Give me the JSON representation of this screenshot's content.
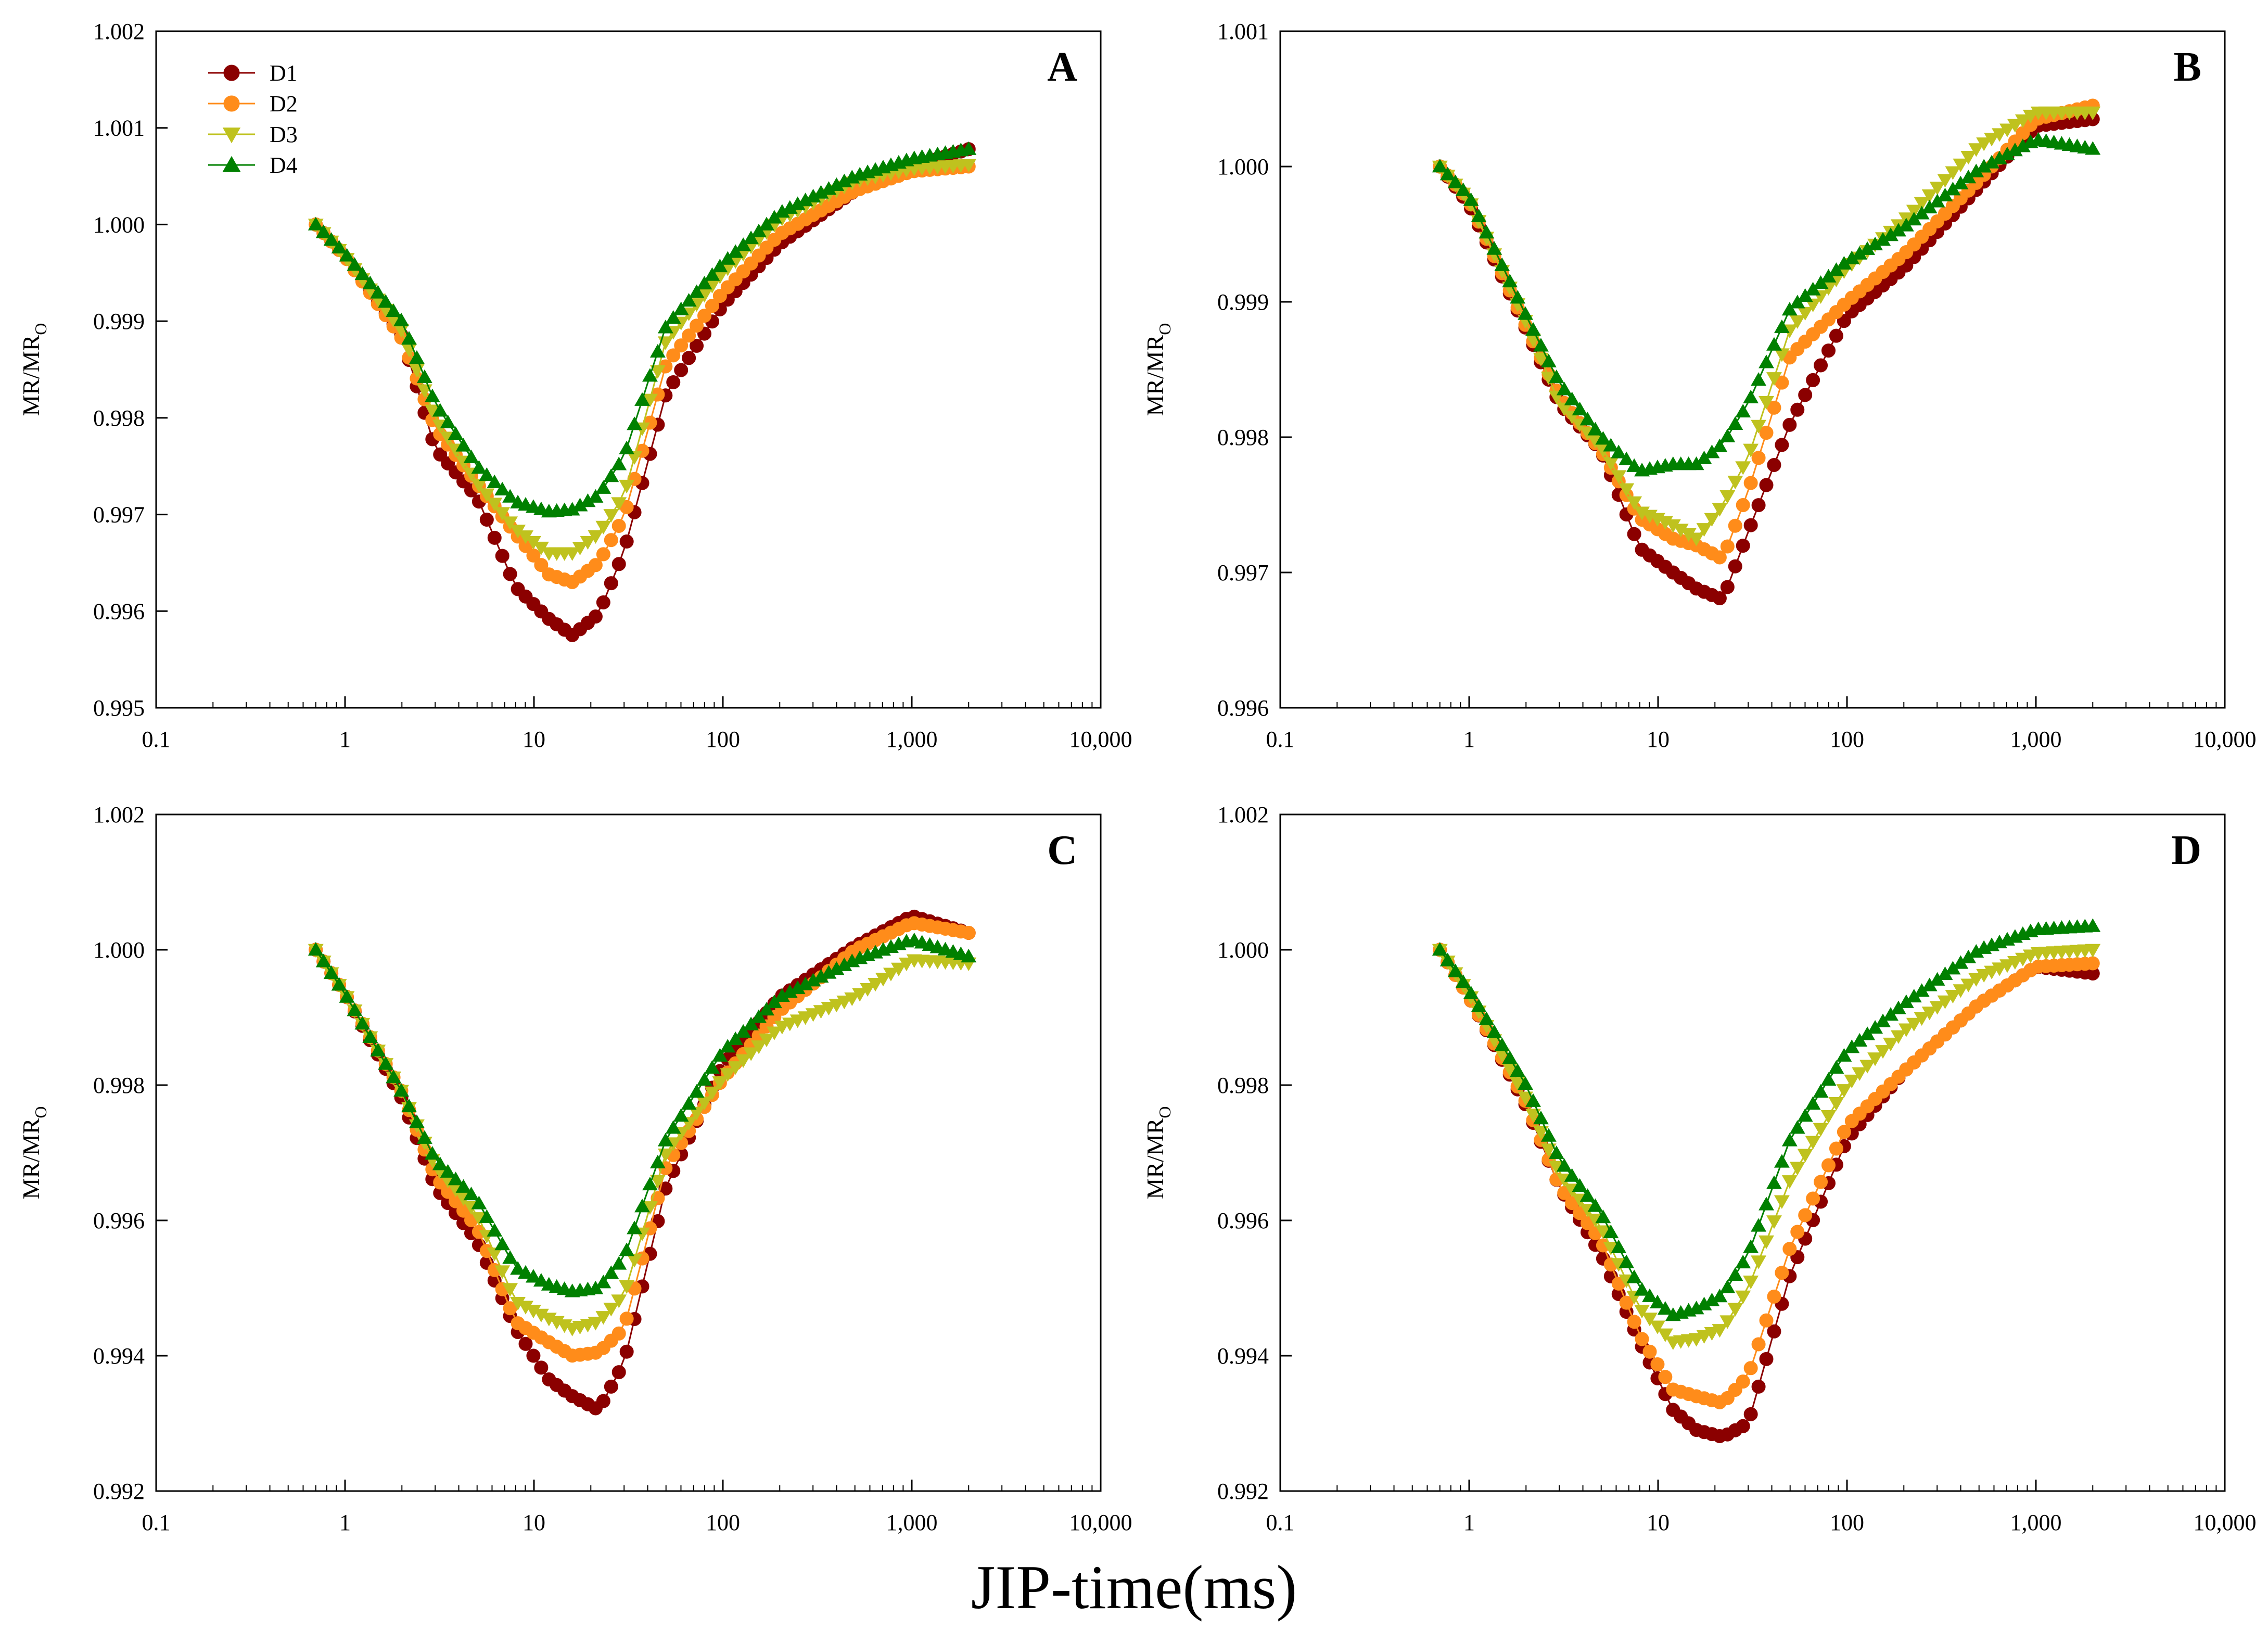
{
  "figure": {
    "xlabel": "JIP-time(ms)",
    "ylabel_main": "MR/MR",
    "ylabel_sub": "O"
  },
  "series_styles": [
    {
      "name": "D1",
      "color": "#8B0000",
      "marker": "circle"
    },
    {
      "name": "D2",
      "color": "#FF8C1A",
      "marker": "circle"
    },
    {
      "name": "D3",
      "color": "#BFC21E",
      "marker": "triangle-down"
    },
    {
      "name": "D4",
      "color": "#008000",
      "marker": "triangle-up"
    }
  ],
  "chart_data": [
    {
      "type": "line",
      "label": "A",
      "xscale": "log",
      "xlabel": "JIP-time(ms)",
      "ylabel": "MR/MRO",
      "xlim": [
        0.1,
        10000
      ],
      "ylim": [
        0.995,
        1.002
      ],
      "xticks": [
        0.1,
        1,
        10,
        100,
        1000,
        10000
      ],
      "xtick_labels": [
        "0.1",
        "1",
        "10",
        "100",
        "1,000",
        "10,000"
      ],
      "yticks": [
        0.995,
        0.996,
        0.997,
        0.998,
        0.999,
        1.0,
        1.001,
        1.002
      ],
      "ytick_labels": [
        "0.995",
        "0.996",
        "0.997",
        "0.998",
        "0.999",
        "1.000",
        "1.001",
        "1.002"
      ],
      "legend": {
        "position": "top-left",
        "entries": [
          "D1",
          "D2",
          "D3",
          "D4"
        ]
      },
      "x_anchors": [
        0.7,
        1,
        2,
        3,
        5,
        8,
        12,
        16,
        22,
        30,
        50,
        100,
        200,
        500,
        1000,
        2000
      ],
      "series": [
        {
          "name": "D1",
          "values": [
            1.0,
            0.99967,
            0.99885,
            0.99768,
            0.99718,
            0.99625,
            0.99592,
            0.99575,
            0.99597,
            0.99662,
            0.99825,
            0.99917,
            0.9998,
            1.00035,
            1.0006,
            1.00078
          ]
        },
        {
          "name": "D2",
          "values": [
            1.0,
            0.99967,
            0.99882,
            0.9979,
            0.99732,
            0.9968,
            0.99638,
            0.9963,
            0.9965,
            0.99698,
            0.99855,
            0.9993,
            0.9999,
            1.00035,
            1.00055,
            1.0006
          ]
        },
        {
          "name": "D3",
          "values": [
            1.0,
            0.99967,
            0.9989,
            0.998,
            0.99733,
            0.99685,
            0.9966,
            0.9966,
            0.9968,
            0.9972,
            0.9988,
            0.9995,
            1.00005,
            1.00045,
            1.00058,
            1.00062
          ]
        },
        {
          "name": "D4",
          "values": [
            1.0,
            0.9997,
            0.999,
            0.99815,
            0.9975,
            0.99713,
            0.99703,
            0.99705,
            0.9972,
            0.9976,
            0.99895,
            0.9996,
            1.00012,
            1.0005,
            1.00068,
            1.00078
          ]
        }
      ]
    },
    {
      "type": "line",
      "label": "B",
      "xscale": "log",
      "xlabel": "JIP-time(ms)",
      "ylabel": "MR/MRO",
      "xlim": [
        0.1,
        10000
      ],
      "ylim": [
        0.996,
        1.001
      ],
      "xticks": [
        0.1,
        1,
        10,
        100,
        1000,
        10000
      ],
      "xtick_labels": [
        "0.1",
        "1",
        "10",
        "100",
        "1,000",
        "10,000"
      ],
      "yticks": [
        0.996,
        0.997,
        0.998,
        0.999,
        1.0,
        1.001
      ],
      "ytick_labels": [
        "0.996",
        "0.997",
        "0.998",
        "0.999",
        "1.000",
        "1.001"
      ],
      "x_anchors": [
        0.7,
        1,
        2,
        3,
        5,
        8,
        12,
        16,
        22,
        30,
        50,
        100,
        200,
        500,
        1000,
        2000
      ],
      "series": [
        {
          "name": "D1",
          "values": [
            1.0,
            0.99972,
            0.9988,
            0.99825,
            0.9979,
            0.99718,
            0.997,
            0.99688,
            0.9968,
            0.9973,
            0.9981,
            0.9989,
            0.99925,
            0.99985,
            1.0003,
            1.00035
          ]
        },
        {
          "name": "D2",
          "values": [
            1.0,
            0.99975,
            0.99882,
            0.9983,
            0.9979,
            0.9974,
            0.99725,
            0.9972,
            0.9971,
            0.9976,
            0.9986,
            0.999,
            0.99935,
            0.9999,
            1.00035,
            1.00045
          ]
        },
        {
          "name": "D3",
          "values": [
            1.0,
            0.99975,
            0.99885,
            0.99825,
            0.99793,
            0.99745,
            0.99735,
            0.99725,
            0.9975,
            0.99785,
            0.9988,
            0.99925,
            0.9996,
            1.00015,
            1.0004,
            1.0004
          ]
        },
        {
          "name": "D4",
          "values": [
            1.0,
            0.99978,
            0.9989,
            0.9984,
            0.998,
            0.99775,
            0.9978,
            0.9978,
            0.99795,
            0.99825,
            0.99895,
            0.9993,
            0.99955,
            0.99998,
            1.0002,
            1.00013
          ]
        }
      ]
    },
    {
      "type": "line",
      "label": "C",
      "xscale": "log",
      "xlabel": "JIP-time(ms)",
      "ylabel": "MR/MRO",
      "xlim": [
        0.1,
        10000
      ],
      "ylim": [
        0.992,
        1.002
      ],
      "xticks": [
        0.1,
        1,
        10,
        100,
        1000,
        10000
      ],
      "xtick_labels": [
        "0.1",
        "1",
        "10",
        "100",
        "1,000",
        "10,000"
      ],
      "yticks": [
        0.992,
        0.994,
        0.996,
        0.998,
        1.0,
        1.002
      ],
      "ytick_labels": [
        "0.992",
        "0.994",
        "0.996",
        "0.998",
        "1.000",
        "1.002"
      ],
      "x_anchors": [
        0.7,
        1,
        2,
        3,
        5,
        8,
        12,
        16,
        22,
        30,
        50,
        100,
        200,
        500,
        1000,
        2000
      ],
      "series": [
        {
          "name": "D1",
          "values": [
            1.0,
            0.99935,
            0.9978,
            0.9965,
            0.9957,
            0.9944,
            0.99365,
            0.9934,
            0.9932,
            0.9939,
            0.9965,
            0.9983,
            0.9993,
            1.00005,
            1.0005,
            1.00025
          ]
        },
        {
          "name": "D2",
          "values": [
            1.0,
            0.99935,
            0.9979,
            0.99665,
            0.9959,
            0.9945,
            0.9942,
            0.994,
            0.99405,
            0.9944,
            0.9968,
            0.9981,
            0.9991,
            1.0,
            1.0004,
            1.00025
          ]
        },
        {
          "name": "D3",
          "values": [
            1.0,
            0.99935,
            0.9979,
            0.9968,
            0.9961,
            0.9948,
            0.99455,
            0.9944,
            0.9945,
            0.9949,
            0.997,
            0.9981,
            0.99885,
            0.9993,
            0.99985,
            0.9998
          ]
        },
        {
          "name": "D4",
          "values": [
            1.0,
            0.99935,
            0.9979,
            0.9969,
            0.9963,
            0.9953,
            0.99505,
            0.99495,
            0.995,
            0.99545,
            0.9972,
            0.9985,
            0.9993,
            0.99985,
            1.00015,
            0.9999
          ]
        }
      ]
    },
    {
      "type": "line",
      "label": "D",
      "xscale": "log",
      "xlabel": "JIP-time(ms)",
      "ylabel": "MR/MRO",
      "xlim": [
        0.1,
        10000
      ],
      "ylim": [
        0.992,
        1.002
      ],
      "xticks": [
        0.1,
        1,
        10,
        100,
        1000,
        10000
      ],
      "xtick_labels": [
        "0.1",
        "1",
        "10",
        "100",
        "1,000",
        "10,000"
      ],
      "yticks": [
        0.992,
        0.994,
        0.996,
        0.998,
        1.0,
        1.002
      ],
      "ytick_labels": [
        "0.992",
        "0.994",
        "0.996",
        "0.998",
        "1.000",
        "1.002"
      ],
      "x_anchors": [
        0.7,
        1,
        2,
        3,
        5,
        8,
        12,
        16,
        22,
        30,
        50,
        100,
        200,
        500,
        1000,
        2000
      ],
      "series": [
        {
          "name": "D1",
          "values": [
            1.0,
            0.9993,
            0.9977,
            0.9965,
            0.9955,
            0.9942,
            0.9932,
            0.9929,
            0.9928,
            0.993,
            0.9952,
            0.9972,
            0.9982,
            0.9992,
            0.99975,
            0.99965
          ]
        },
        {
          "name": "D2",
          "values": [
            1.0,
            0.9993,
            0.99775,
            0.9965,
            0.9957,
            0.9943,
            0.9935,
            0.9934,
            0.9933,
            0.9937,
            0.9956,
            0.9974,
            0.9982,
            0.9992,
            0.99975,
            0.9998
          ]
        },
        {
          "name": "D3",
          "values": [
            1.0,
            0.99935,
            0.9978,
            0.9967,
            0.9959,
            0.9947,
            0.9942,
            0.99425,
            0.9944,
            0.995,
            0.9966,
            0.998,
            0.9988,
            0.9996,
            0.99995,
            1.0
          ]
        },
        {
          "name": "D4",
          "values": [
            1.0,
            0.9994,
            0.998,
            0.9969,
            0.9961,
            0.995,
            0.9946,
            0.9947,
            0.9949,
            0.9955,
            0.9972,
            0.9985,
            0.9992,
            1.0,
            1.0003,
            1.00035
          ]
        }
      ]
    }
  ]
}
